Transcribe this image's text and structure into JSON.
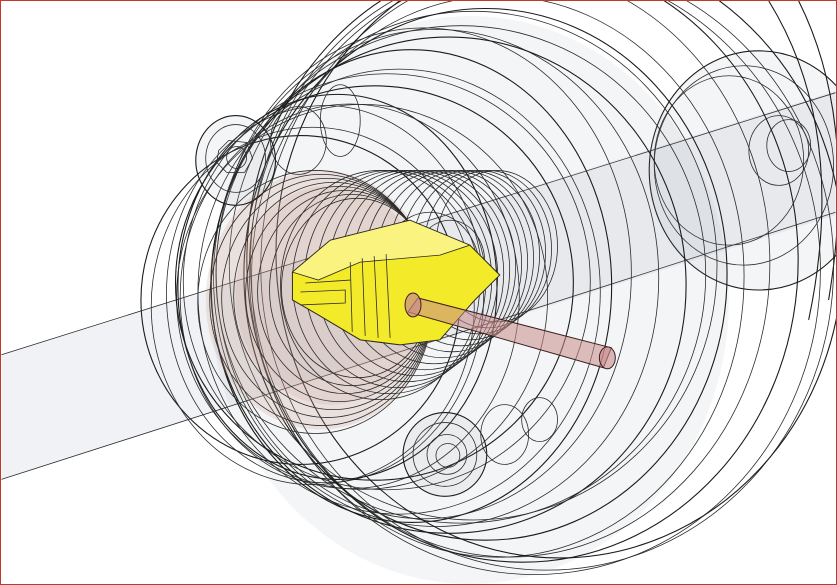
{
  "viewport": {
    "background": "#ffffff",
    "frame_color": "#c0392b"
  },
  "colors": {
    "wireframe_edge": "#1b1b1b",
    "ghost_fill": "#9aa0aa",
    "copper_part": "#c99a8a",
    "highlight_part": "#f3ea2a",
    "rod_part": "#c98a8a"
  },
  "parts": [
    {
      "name": "main-shaft",
      "kind": "cylinder"
    },
    {
      "name": "rear-drum",
      "kind": "cylinder"
    },
    {
      "name": "gear-stack",
      "kind": "ring-set"
    },
    {
      "name": "copper-housing",
      "kind": "ring-set"
    },
    {
      "name": "highlighted-block",
      "kind": "box"
    },
    {
      "name": "pin-rod",
      "kind": "cylinder"
    },
    {
      "name": "bolt-upper",
      "kind": "fastener"
    },
    {
      "name": "bolt-lower",
      "kind": "fastener"
    }
  ]
}
